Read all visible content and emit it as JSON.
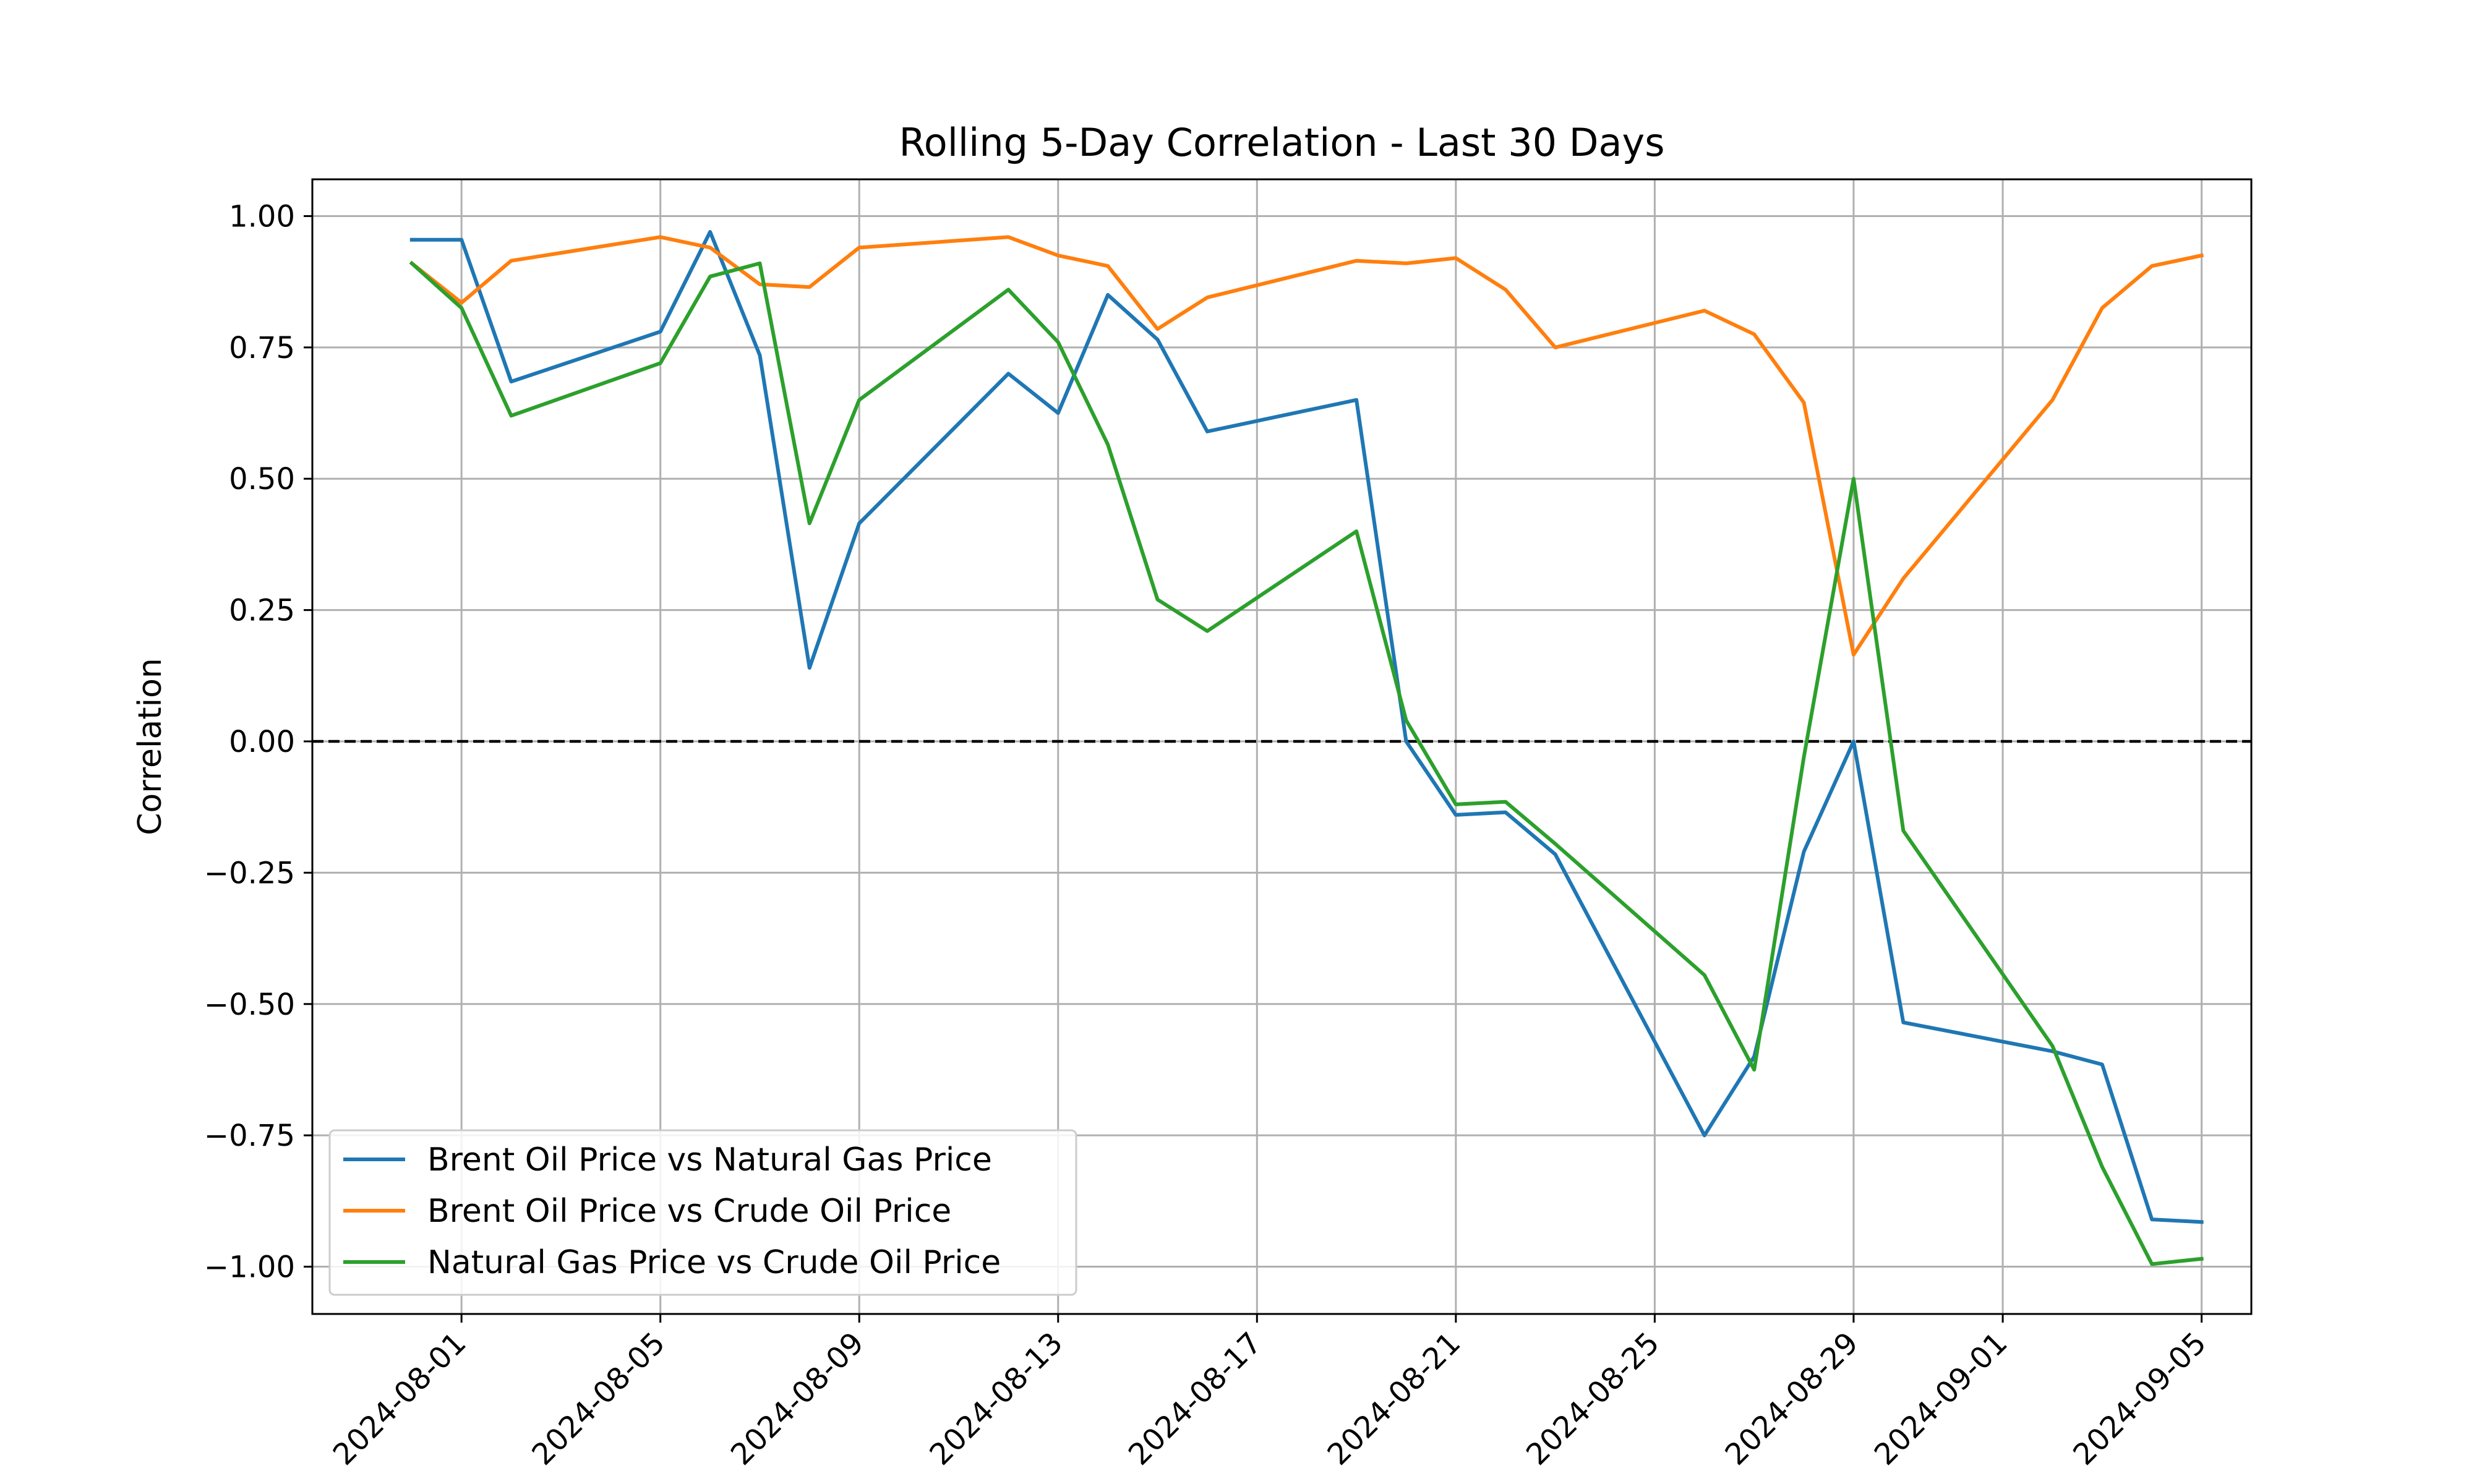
{
  "chart_data": {
    "type": "line",
    "title": "Rolling 5-Day Correlation - Last 30 Days",
    "xlabel": "",
    "ylabel": "Correlation",
    "xlim": [
      "2024-07-29",
      "2024-09-06"
    ],
    "ylim": [
      -1.09,
      1.07
    ],
    "grid": true,
    "legend_position": "lower-left",
    "reference_line": {
      "y": 0.0,
      "style": "dashed",
      "color": "#000000"
    },
    "x_ticks": [
      "2024-08-01",
      "2024-08-05",
      "2024-08-09",
      "2024-08-13",
      "2024-08-17",
      "2024-08-21",
      "2024-08-25",
      "2024-08-29",
      "2024-09-01",
      "2024-09-05"
    ],
    "y_ticks": [
      1.0,
      0.75,
      0.5,
      0.25,
      0.0,
      -0.25,
      -0.5,
      -0.75,
      -1.0
    ],
    "y_tick_labels": [
      "1.00",
      "0.75",
      "0.50",
      "0.25",
      "0.00",
      "−0.25",
      "−0.50",
      "−0.75",
      "−1.00"
    ],
    "x": [
      "2024-07-31",
      "2024-08-01",
      "2024-08-02",
      "2024-08-05",
      "2024-08-06",
      "2024-08-07",
      "2024-08-08",
      "2024-08-09",
      "2024-08-12",
      "2024-08-13",
      "2024-08-14",
      "2024-08-15",
      "2024-08-16",
      "2024-08-19",
      "2024-08-20",
      "2024-08-21",
      "2024-08-22",
      "2024-08-23",
      "2024-08-26",
      "2024-08-27",
      "2024-08-28",
      "2024-08-29",
      "2024-08-30",
      "2024-09-02",
      "2024-09-03",
      "2024-09-04"
    ],
    "series": [
      {
        "name": "Brent Oil Price vs Natural Gas Price",
        "color": "#1f77b4",
        "values": [
          0.955,
          0.955,
          0.685,
          0.78,
          0.97,
          0.735,
          0.14,
          0.415,
          0.7,
          0.625,
          0.85,
          0.765,
          0.59,
          0.65,
          0.0,
          -0.14,
          -0.135,
          -0.215,
          -0.75,
          -0.6,
          -0.21,
          0.0,
          -0.535,
          -0.59,
          -0.615,
          -0.91
        ]
      },
      {
        "name": "Brent Oil Price vs Crude Oil Price",
        "color": "#ff7f0e",
        "values": [
          0.91,
          0.835,
          0.915,
          0.96,
          0.94,
          0.87,
          0.865,
          0.94,
          0.96,
          0.925,
          0.905,
          0.785,
          0.845,
          0.915,
          0.91,
          0.92,
          0.86,
          0.75,
          0.82,
          0.775,
          0.645,
          0.165,
          0.31,
          0.65,
          0.825,
          0.905
        ]
      },
      {
        "name": "Natural Gas Price vs Crude Oil Price",
        "color": "#2ca02c",
        "values": [
          0.91,
          0.825,
          0.62,
          0.72,
          0.885,
          0.91,
          0.415,
          0.65,
          0.86,
          0.76,
          0.565,
          0.27,
          0.21,
          0.4,
          0.04,
          -0.12,
          -0.115,
          -0.195,
          -0.445,
          -0.625,
          -0.03,
          0.5,
          -0.17,
          -0.58,
          -0.81,
          -0.995
        ]
      }
    ],
    "last_points": {
      "2024-09-05": {
        "Brent Oil Price vs Natural Gas Price": -0.915,
        "Brent Oil Price vs Crude Oil Price": 0.925,
        "Natural Gas Price vs Crude Oil Price": -0.985
      }
    }
  }
}
